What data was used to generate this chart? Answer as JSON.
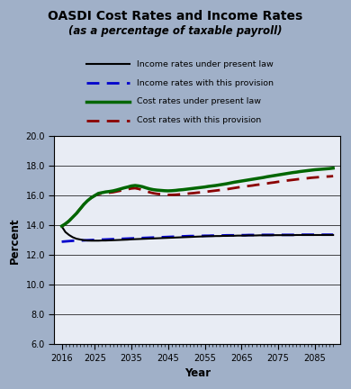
{
  "title_line1": "OASDI Cost Rates and Income Rates",
  "title_line2": "(as a percentage of taxable payroll)",
  "xlabel": "Year",
  "ylabel": "Percent",
  "xlim": [
    2014,
    2092
  ],
  "ylim": [
    6.0,
    20.0
  ],
  "xticks": [
    2016,
    2025,
    2035,
    2045,
    2055,
    2065,
    2075,
    2085
  ],
  "yticks": [
    6.0,
    8.0,
    10.0,
    12.0,
    14.0,
    16.0,
    18.0,
    20.0
  ],
  "bg_outer": "#a0b0c8",
  "bg_inner": "#e8ecf4",
  "legend_labels": [
    "Income rates under present law",
    "Income rates with this provision",
    "Cost rates under present law",
    "Cost rates with this provision"
  ],
  "income_present_color": "#000000",
  "income_provision_color": "#0000cc",
  "cost_present_color": "#006600",
  "cost_provision_color": "#8b0000",
  "years": [
    2016,
    2017,
    2018,
    2019,
    2020,
    2021,
    2022,
    2023,
    2024,
    2025,
    2026,
    2027,
    2028,
    2029,
    2030,
    2031,
    2032,
    2033,
    2034,
    2035,
    2036,
    2037,
    2038,
    2039,
    2040,
    2041,
    2042,
    2043,
    2044,
    2045,
    2046,
    2047,
    2048,
    2049,
    2050,
    2051,
    2052,
    2053,
    2054,
    2055,
    2056,
    2057,
    2058,
    2059,
    2060,
    2061,
    2062,
    2063,
    2064,
    2065,
    2066,
    2067,
    2068,
    2069,
    2070,
    2071,
    2072,
    2073,
    2074,
    2075,
    2076,
    2077,
    2078,
    2079,
    2080,
    2081,
    2082,
    2083,
    2084,
    2085,
    2086,
    2087,
    2088,
    2089,
    2090
  ],
  "income_present": [
    13.93,
    13.55,
    13.35,
    13.2,
    13.1,
    13.05,
    13.0,
    12.98,
    12.97,
    12.97,
    12.97,
    12.98,
    12.98,
    12.99,
    13.0,
    13.01,
    13.02,
    13.03,
    13.04,
    13.06,
    13.07,
    13.08,
    13.09,
    13.1,
    13.11,
    13.12,
    13.13,
    13.14,
    13.15,
    13.16,
    13.17,
    13.18,
    13.19,
    13.2,
    13.21,
    13.22,
    13.23,
    13.24,
    13.25,
    13.26,
    13.27,
    13.27,
    13.28,
    13.28,
    13.29,
    13.29,
    13.3,
    13.3,
    13.31,
    13.31,
    13.31,
    13.32,
    13.32,
    13.32,
    13.33,
    13.33,
    13.33,
    13.33,
    13.34,
    13.34,
    13.34,
    13.34,
    13.34,
    13.34,
    13.35,
    13.35,
    13.35,
    13.35,
    13.35,
    13.35,
    13.35,
    13.35,
    13.35,
    13.35,
    13.35
  ],
  "income_provision": [
    12.9,
    12.92,
    12.94,
    12.96,
    12.97,
    12.98,
    12.99,
    13.0,
    13.01,
    13.02,
    13.03,
    13.04,
    13.05,
    13.06,
    13.07,
    13.08,
    13.09,
    13.1,
    13.11,
    13.12,
    13.13,
    13.14,
    13.15,
    13.16,
    13.17,
    13.18,
    13.19,
    13.2,
    13.21,
    13.22,
    13.23,
    13.24,
    13.25,
    13.26,
    13.27,
    13.28,
    13.28,
    13.29,
    13.29,
    13.3,
    13.3,
    13.31,
    13.31,
    13.32,
    13.32,
    13.33,
    13.33,
    13.33,
    13.34,
    13.34,
    13.34,
    13.35,
    13.35,
    13.35,
    13.35,
    13.36,
    13.36,
    13.36,
    13.36,
    13.36,
    13.36,
    13.36,
    13.36,
    13.36,
    13.37,
    13.37,
    13.37,
    13.37,
    13.37,
    13.37,
    13.37,
    13.37,
    13.37,
    13.37,
    13.37
  ],
  "cost_present": [
    13.95,
    14.1,
    14.3,
    14.55,
    14.8,
    15.1,
    15.4,
    15.65,
    15.85,
    16.0,
    16.15,
    16.2,
    16.25,
    16.28,
    16.32,
    16.38,
    16.45,
    16.52,
    16.58,
    16.65,
    16.68,
    16.65,
    16.6,
    16.52,
    16.45,
    16.4,
    16.37,
    16.35,
    16.33,
    16.32,
    16.33,
    16.35,
    16.38,
    16.4,
    16.43,
    16.46,
    16.49,
    16.52,
    16.55,
    16.58,
    16.62,
    16.65,
    16.68,
    16.72,
    16.76,
    16.8,
    16.85,
    16.9,
    16.94,
    16.98,
    17.02,
    17.06,
    17.1,
    17.14,
    17.18,
    17.22,
    17.27,
    17.31,
    17.35,
    17.39,
    17.43,
    17.47,
    17.51,
    17.55,
    17.58,
    17.62,
    17.65,
    17.68,
    17.71,
    17.74,
    17.76,
    17.78,
    17.8,
    17.82,
    17.85
  ],
  "cost_provision": [
    13.92,
    14.1,
    14.3,
    14.55,
    14.8,
    15.1,
    15.4,
    15.65,
    15.85,
    16.0,
    16.1,
    16.15,
    16.18,
    16.2,
    16.23,
    16.28,
    16.33,
    16.38,
    16.43,
    16.48,
    16.5,
    16.45,
    16.38,
    16.3,
    16.22,
    16.16,
    16.12,
    16.09,
    16.07,
    16.05,
    16.05,
    16.06,
    16.08,
    16.1,
    16.12,
    16.15,
    16.17,
    16.2,
    16.22,
    16.25,
    16.28,
    16.31,
    16.34,
    16.37,
    16.4,
    16.43,
    16.47,
    16.51,
    16.55,
    16.58,
    16.62,
    16.65,
    16.68,
    16.72,
    16.75,
    16.79,
    16.82,
    16.86,
    16.89,
    16.93,
    16.96,
    17.0,
    17.03,
    17.06,
    17.09,
    17.12,
    17.15,
    17.17,
    17.2,
    17.22,
    17.24,
    17.26,
    17.28,
    17.29,
    17.31
  ]
}
